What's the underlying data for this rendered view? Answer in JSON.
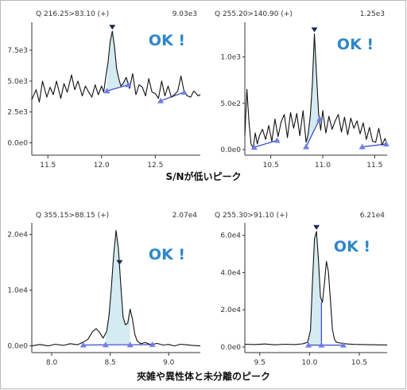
{
  "captions": {
    "top": "S/Nが低いピーク",
    "bottom": "夾雑や異性体と未分離のピーク"
  },
  "colors": {
    "fill": "#d5ebf2",
    "line": "#111111",
    "baseline": "#3344cc",
    "marker": "#6f7ee6",
    "apex": "#1a2a52",
    "ok": "#2e86c8"
  },
  "chart_data": [
    {
      "type": "line",
      "header": "Q 216.25>83.10 (+)",
      "max_label": "9.03e3",
      "annotation": "OK !",
      "xlim": [
        11.35,
        12.92
      ],
      "ylim": [
        -1000,
        9500
      ],
      "xticks": [
        11.5,
        12.0,
        12.5
      ],
      "xtick_labels": [
        "11.5",
        "12.0",
        "12.5"
      ],
      "yticks": [
        0,
        2500,
        5000,
        7500
      ],
      "ytick_labels": [
        "0.0e0",
        "2.5e3",
        "5.0e3",
        "7.5e3"
      ],
      "x": [
        11.35,
        11.39,
        11.42,
        11.45,
        11.49,
        11.52,
        11.55,
        11.58,
        11.62,
        11.65,
        11.68,
        11.72,
        11.75,
        11.78,
        11.82,
        11.85,
        11.88,
        11.91,
        11.94,
        11.97,
        12.0,
        12.02,
        12.04,
        12.06,
        12.08,
        12.1,
        12.12,
        12.14,
        12.16,
        12.18,
        12.2,
        12.23,
        12.26,
        12.29,
        12.32,
        12.35,
        12.38,
        12.41,
        12.44,
        12.47,
        12.5,
        12.53,
        12.56,
        12.59,
        12.62,
        12.65,
        12.68,
        12.71,
        12.74,
        12.77,
        12.8,
        12.83,
        12.86,
        12.9,
        12.92
      ],
      "y": [
        3500,
        4300,
        3300,
        5000,
        3700,
        4500,
        3900,
        5000,
        3600,
        4800,
        4100,
        5500,
        4300,
        5000,
        3800,
        4600,
        4100,
        3700,
        4700,
        3900,
        4600,
        4100,
        5400,
        6500,
        8200,
        9030,
        7800,
        6000,
        5200,
        4600,
        4800,
        5300,
        4400,
        5600,
        3900,
        4700,
        4500,
        3800,
        5200,
        4100,
        4000,
        3600,
        5000,
        3800,
        4600,
        3700,
        3900,
        4200,
        5400,
        4100,
        3800,
        3700,
        4200,
        3800,
        3900
      ],
      "peak": {
        "start": 12.05,
        "end": 12.25,
        "apex": 12.1,
        "start_y": 4200,
        "end_y": 4700
      },
      "markers": [
        {
          "x": 12.05,
          "y": 4200
        },
        {
          "x": 12.25,
          "y": 4700
        },
        {
          "x": 12.55,
          "y": 3400
        },
        {
          "x": 12.77,
          "y": 4100
        }
      ],
      "extra_baselines": [
        {
          "x1": 12.55,
          "y1": 3400,
          "x2": 12.77,
          "y2": 4100
        }
      ]
    },
    {
      "type": "line",
      "header": "Q 255.20>140.90 (+)",
      "max_label": "1.25e3",
      "annotation": "OK !",
      "xlim": [
        10.25,
        11.62
      ],
      "ylim": [
        -60,
        1340
      ],
      "xticks": [
        10.5,
        11.0,
        11.5
      ],
      "xtick_labels": [
        "10.5",
        "11.0",
        "11.5"
      ],
      "yticks": [
        0,
        500,
        1000
      ],
      "ytick_labels": [
        "0.0e0",
        "5.0e2",
        "1.0e3"
      ],
      "x": [
        10.25,
        10.27,
        10.29,
        10.31,
        10.33,
        10.35,
        10.37,
        10.39,
        10.42,
        10.45,
        10.48,
        10.51,
        10.54,
        10.57,
        10.6,
        10.63,
        10.66,
        10.69,
        10.72,
        10.75,
        10.78,
        10.81,
        10.84,
        10.86,
        10.88,
        10.9,
        10.92,
        10.94,
        10.96,
        10.98,
        11.0,
        11.03,
        11.06,
        11.09,
        11.12,
        11.15,
        11.18,
        11.21,
        11.24,
        11.27,
        11.3,
        11.33,
        11.36,
        11.39,
        11.42,
        11.45,
        11.48,
        11.51,
        11.54,
        11.57,
        11.6,
        11.62
      ],
      "y": [
        150,
        650,
        300,
        60,
        20,
        180,
        60,
        150,
        220,
        110,
        260,
        90,
        330,
        140,
        300,
        380,
        130,
        400,
        230,
        390,
        150,
        420,
        80,
        170,
        360,
        700,
        1250,
        800,
        390,
        210,
        420,
        180,
        360,
        220,
        310,
        380,
        190,
        350,
        160,
        340,
        230,
        310,
        170,
        290,
        110,
        240,
        90,
        80,
        230,
        50,
        120,
        50
      ],
      "peak": {
        "start": 10.84,
        "end": 10.97,
        "apex": 10.92,
        "start_y": 30,
        "end_y": 330
      },
      "markers": [
        {
          "x": 10.34,
          "y": 25
        },
        {
          "x": 10.56,
          "y": 100
        },
        {
          "x": 10.84,
          "y": 30
        },
        {
          "x": 10.97,
          "y": 330
        },
        {
          "x": 11.38,
          "y": 30
        },
        {
          "x": 11.61,
          "y": 60
        }
      ],
      "extra_baselines": [
        {
          "x1": 10.34,
          "y1": 25,
          "x2": 10.56,
          "y2": 100
        },
        {
          "x1": 11.38,
          "y1": 30,
          "x2": 11.61,
          "y2": 60
        }
      ]
    },
    {
      "type": "line",
      "header": "Q 355.15>88.15 (+)",
      "max_label": "2.07e4",
      "annotation": "OK !",
      "xlim": [
        7.83,
        9.27
      ],
      "ylim": [
        -1200,
        21500
      ],
      "xticks": [
        8.0,
        8.5,
        9.0
      ],
      "xtick_labels": [
        "8.0",
        "8.5",
        "9.0"
      ],
      "yticks": [
        0,
        10000,
        20000
      ],
      "ytick_labels": [
        "0.0e0",
        "1.0e4",
        "2.0e4"
      ],
      "x": [
        7.83,
        7.9,
        7.97,
        8.03,
        8.1,
        8.16,
        8.22,
        8.27,
        8.31,
        8.35,
        8.38,
        8.41,
        8.44,
        8.47,
        8.49,
        8.51,
        8.53,
        8.55,
        8.57,
        8.59,
        8.61,
        8.63,
        8.65,
        8.67,
        8.69,
        8.71,
        8.73,
        8.76,
        8.8,
        8.85,
        8.9,
        8.95,
        9.0,
        9.05,
        9.1,
        9.15,
        9.2,
        9.27
      ],
      "y": [
        0,
        250,
        0,
        300,
        100,
        400,
        200,
        700,
        1200,
        2600,
        3100,
        2400,
        1400,
        2600,
        5500,
        10500,
        16500,
        20700,
        17500,
        11000,
        5200,
        3800,
        4100,
        6600,
        4800,
        2100,
        900,
        400,
        600,
        200,
        450,
        150,
        250,
        0,
        300,
        200,
        100,
        0
      ],
      "peak": {
        "start": 8.46,
        "end": 8.67,
        "apex": 8.58,
        "start_y": 200,
        "end_y": 200
      },
      "markers": [
        {
          "x": 8.27,
          "y": 150
        },
        {
          "x": 8.46,
          "y": 200
        },
        {
          "x": 8.67,
          "y": 200
        },
        {
          "x": 8.86,
          "y": 250
        }
      ],
      "extra_baselines": [
        {
          "x1": 8.27,
          "y1": 150,
          "x2": 8.46,
          "y2": 200
        },
        {
          "x1": 8.67,
          "y1": 200,
          "x2": 8.86,
          "y2": 250
        }
      ]
    },
    {
      "type": "line",
      "header": "Q 255.30>91.10 (+)",
      "max_label": "6.21e4",
      "annotation": "OK !",
      "xlim": [
        9.35,
        10.78
      ],
      "ylim": [
        -3000,
        65000
      ],
      "xticks": [
        9.5,
        10.0,
        10.5
      ],
      "xtick_labels": [
        "9.5",
        "10.0",
        "10.5"
      ],
      "yticks": [
        0,
        20000,
        40000,
        60000
      ],
      "ytick_labels": [
        "0.0e0",
        "2.0e4",
        "4.0e4",
        "6.0e4"
      ],
      "x": [
        9.35,
        9.45,
        9.55,
        9.65,
        9.75,
        9.85,
        9.93,
        9.98,
        10.01,
        10.03,
        10.05,
        10.07,
        10.09,
        10.11,
        10.13,
        10.15,
        10.17,
        10.19,
        10.21,
        10.23,
        10.25,
        10.27,
        10.3,
        10.34,
        10.38,
        10.45,
        10.55,
        10.65,
        10.78
      ],
      "y": [
        1500,
        1300,
        1600,
        1200,
        1500,
        1300,
        1700,
        2500,
        9000,
        35000,
        58000,
        62100,
        47000,
        27000,
        24000,
        34000,
        46000,
        40500,
        25000,
        9500,
        4200,
        2600,
        2200,
        1900,
        1600,
        1400,
        1300,
        1200,
        1100
      ],
      "peak": {
        "start": 9.99,
        "end": 10.12,
        "apex": 10.07,
        "start_y": 1000,
        "end_y": 1000
      },
      "markers": [
        {
          "x": 9.99,
          "y": 1000
        },
        {
          "x": 10.12,
          "y": 1000
        },
        {
          "x": 10.34,
          "y": 1000
        }
      ],
      "extra_baselines": [
        {
          "x1": 10.12,
          "y1": 1000,
          "x2": 10.34,
          "y2": 1000
        }
      ],
      "split_line": {
        "x": 10.12,
        "y": 24000
      }
    }
  ]
}
